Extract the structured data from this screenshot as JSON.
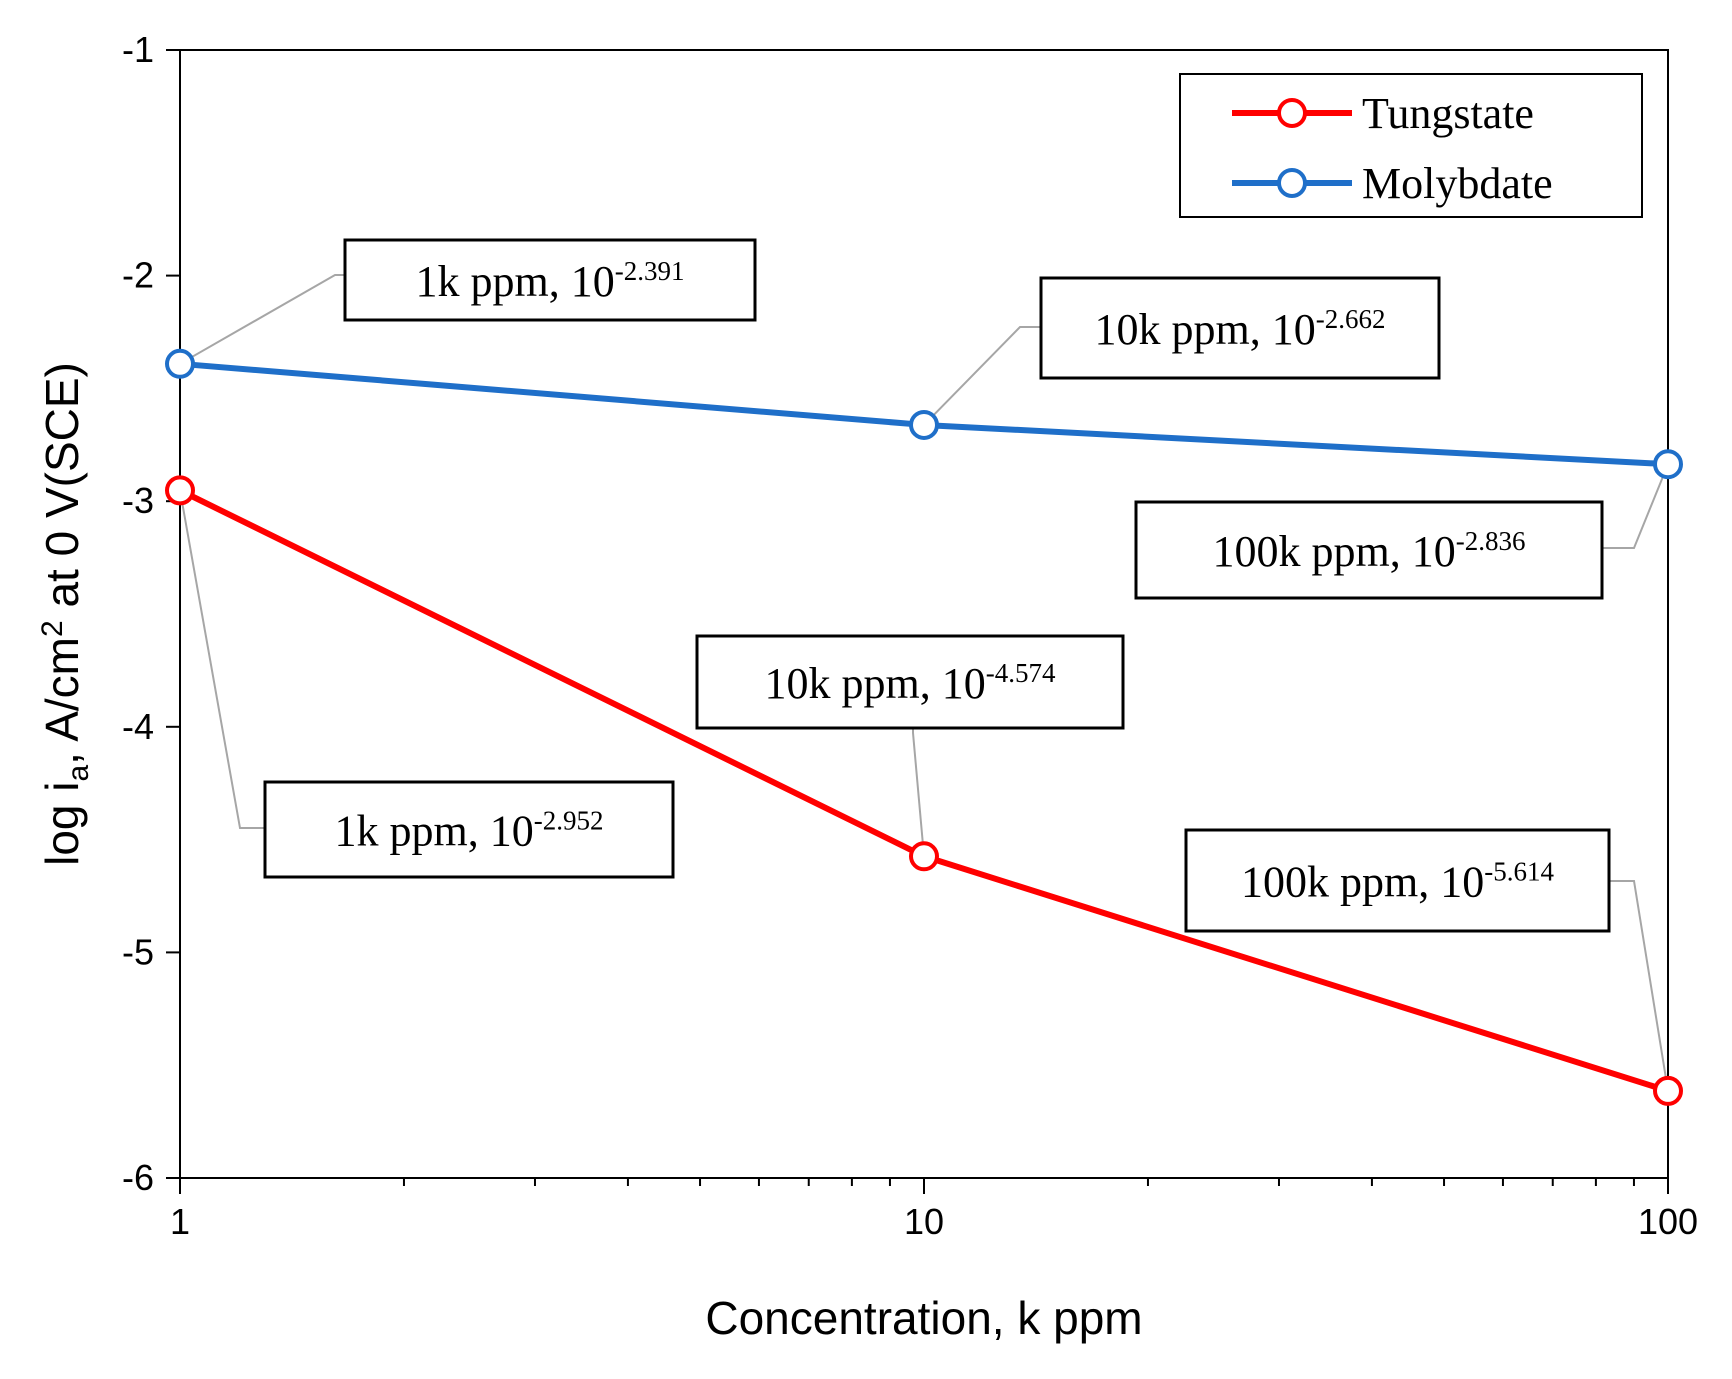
{
  "chart_data": {
    "type": "line",
    "title": "",
    "xlabel": "Concentration, k ppm",
    "ylabel_parts": [
      "log i",
      "a",
      ", A/cm",
      "2",
      " at 0 V(SCE)"
    ],
    "xscale": "log",
    "xlim": [
      1,
      100
    ],
    "ylim": [
      -6,
      -1
    ],
    "x_ticks": [
      1,
      10,
      100
    ],
    "x_tick_labels": [
      "1",
      "10",
      "100"
    ],
    "y_ticks": [
      -1,
      -2,
      -3,
      -4,
      -5,
      -6
    ],
    "y_tick_labels": [
      "-1",
      "-2",
      "-3",
      "-4",
      "-5",
      "-6"
    ],
    "grid": false,
    "x": [
      1,
      10,
      100
    ],
    "series": [
      {
        "name": "Tungstate",
        "color": "#ff0000",
        "values": [
          -2.952,
          -4.574,
          -5.614
        ]
      },
      {
        "name": "Molybdate",
        "color": "#1f6fc9",
        "values": [
          -2.391,
          -2.662,
          -2.836
        ]
      }
    ],
    "legend": {
      "position": "top-right",
      "entries": [
        "Tungstate",
        "Molybdate"
      ]
    },
    "annotations": [
      {
        "series": "Molybdate",
        "point": 0,
        "text": "1k ppm, 10",
        "exponent": "-2.391"
      },
      {
        "series": "Molybdate",
        "point": 1,
        "text": "10k ppm, 10",
        "exponent": "-2.662"
      },
      {
        "series": "Molybdate",
        "point": 2,
        "text": "100k ppm, 10",
        "exponent": "-2.836"
      },
      {
        "series": "Tungstate",
        "point": 0,
        "text": "1k ppm, 10",
        "exponent": "-2.952"
      },
      {
        "series": "Tungstate",
        "point": 1,
        "text": "10k ppm, 10",
        "exponent": "-4.574"
      },
      {
        "series": "Tungstate",
        "point": 2,
        "text": "100k ppm, 10",
        "exponent": "-5.614"
      }
    ]
  }
}
